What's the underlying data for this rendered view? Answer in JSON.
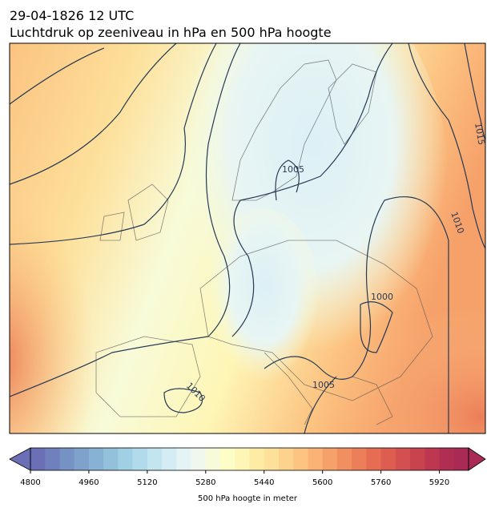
{
  "header": {
    "title": "29-04-1826 12 UTC",
    "subtitle": "Luchtdruk op zeeniveau in hPa en 500 hPa hoogte"
  },
  "map": {
    "contour_labels": [
      1005,
      1000,
      1010,
      1015,
      1005,
      1010
    ]
  },
  "colorbar": {
    "label": "500 hPa hoogte in meter",
    "lim": [
      4800,
      6000
    ],
    "ticks": [
      4800,
      4960,
      5120,
      5280,
      5440,
      5600,
      5760,
      5920
    ],
    "colors": [
      "#6a6fb6",
      "#6f80bd",
      "#7691c4",
      "#7fa2cc",
      "#88b2d4",
      "#93c1dc",
      "#a1cfe3",
      "#b1dbea",
      "#c3e5f0",
      "#d4edf5",
      "#e4f3f5",
      "#f0f8ee",
      "#f8fbd9",
      "#fdfdc6",
      "#fef6b6",
      "#feeca5",
      "#fde09a",
      "#fdd28d",
      "#fcc381",
      "#fab275",
      "#f6a06a",
      "#f28f61",
      "#ec7e59",
      "#e66d54",
      "#de5d51",
      "#d44f50",
      "#c9434f",
      "#bd3750",
      "#b02e52",
      "#a82a55"
    ]
  }
}
